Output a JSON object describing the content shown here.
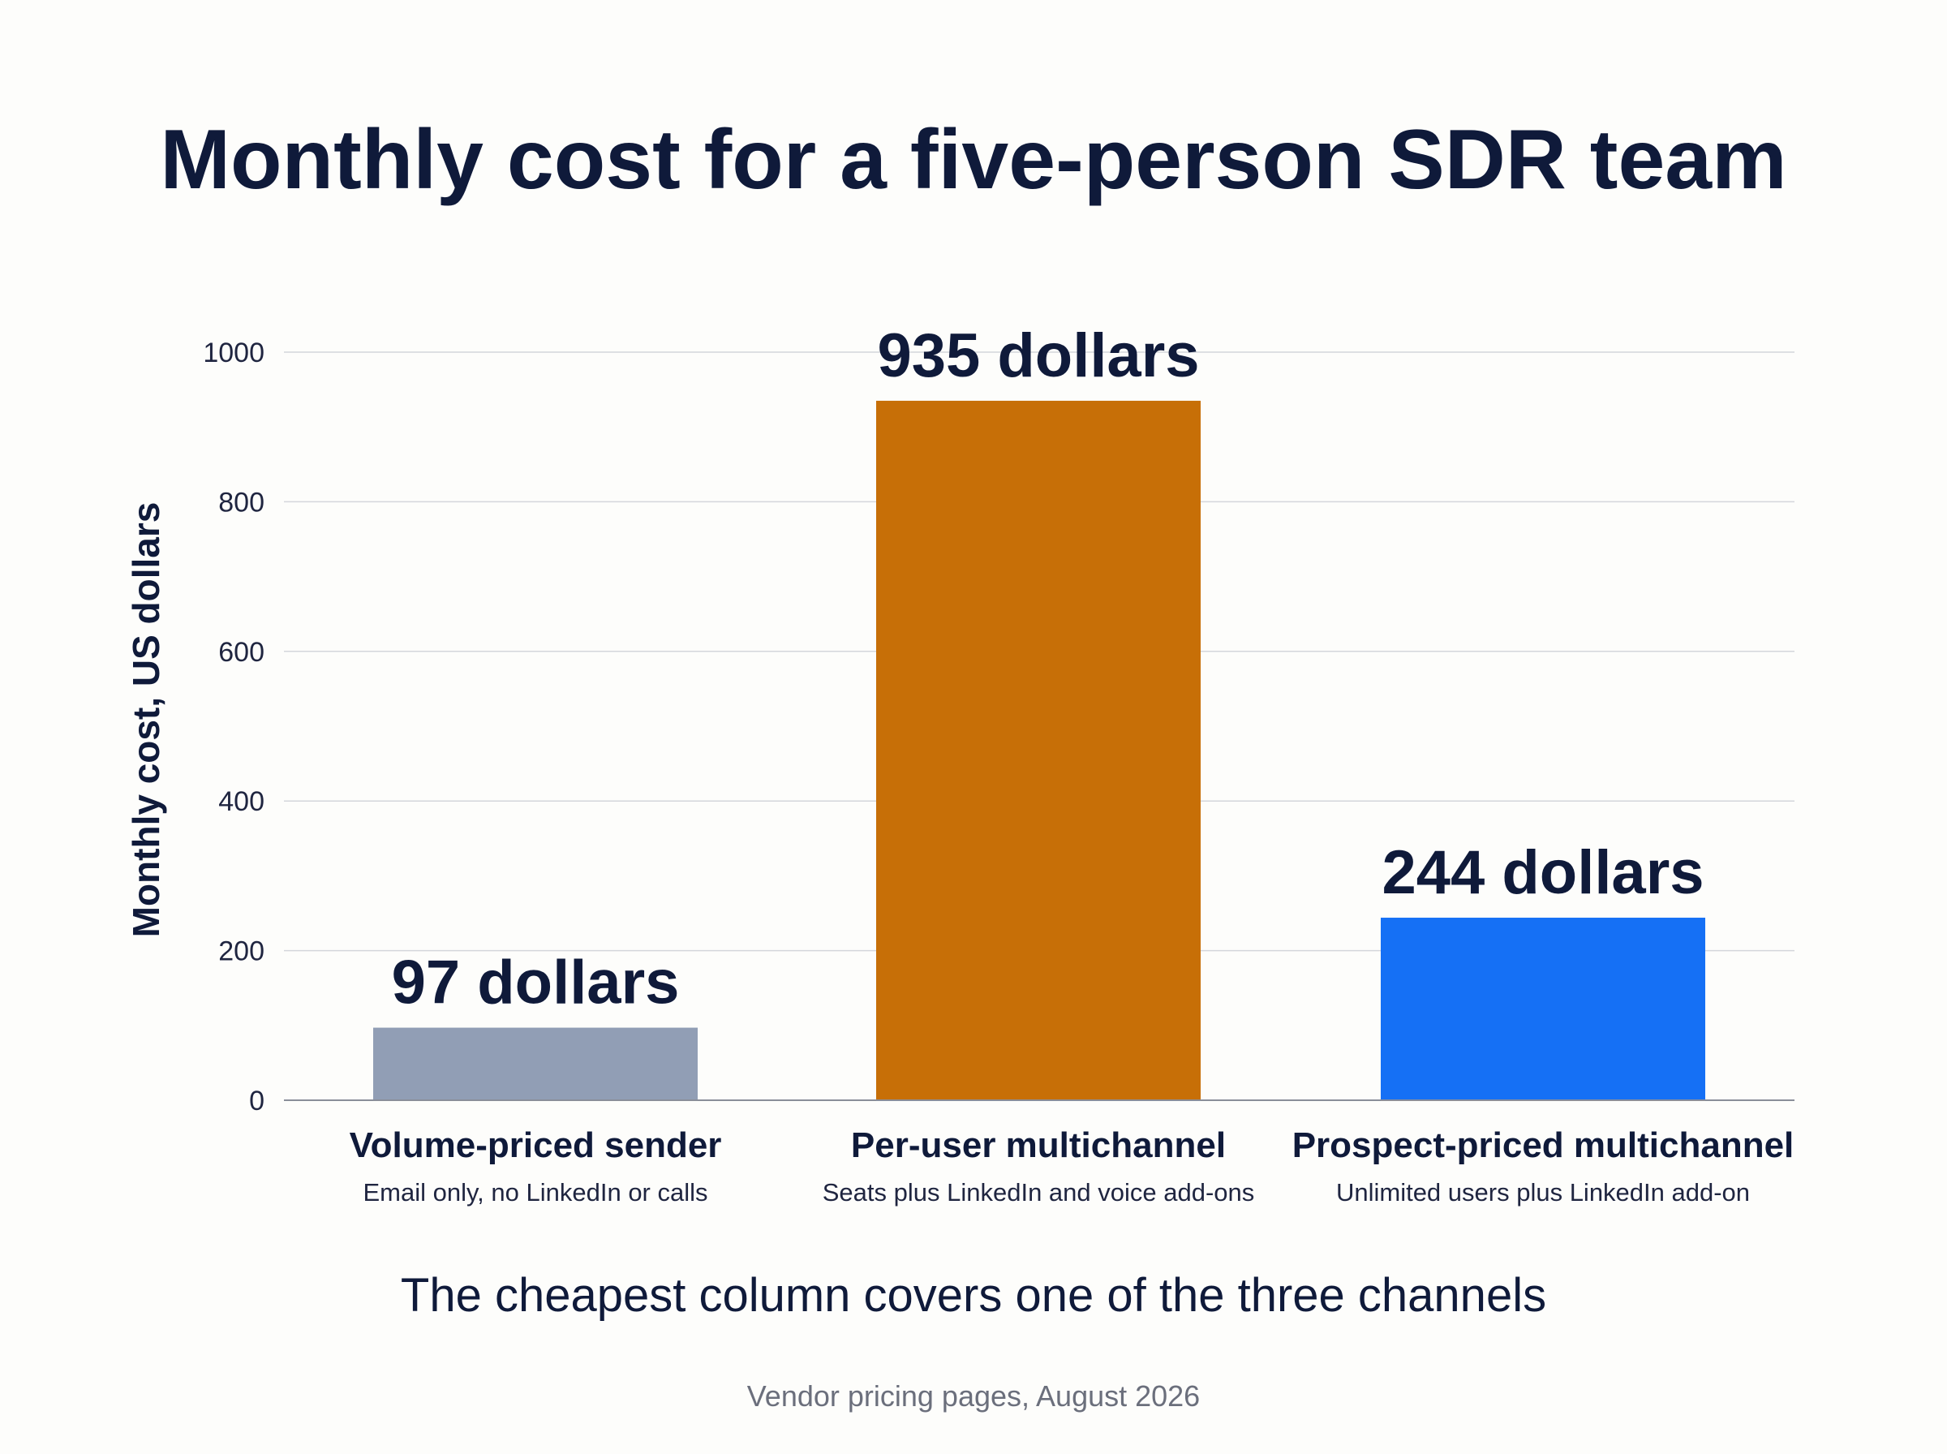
{
  "chart_data": {
    "type": "bar",
    "title": "Monthly cost for a five-person SDR team",
    "ylabel": "Monthly cost, US dollars",
    "xlabel": "",
    "ylim": [
      0,
      1000
    ],
    "yticks": [
      0,
      200,
      400,
      600,
      800,
      1000
    ],
    "grid": true,
    "categories": [
      "Volume-priced sender",
      "Per-user multichannel",
      "Prospect-priced multichannel"
    ],
    "category_notes": [
      "Email only, no LinkedIn or calls",
      "Seats plus LinkedIn and voice add-ons",
      "Unlimited users plus LinkedIn add-on"
    ],
    "values": [
      97,
      935,
      244
    ],
    "data_labels": [
      "97 dollars",
      "935 dollars",
      "244 dollars"
    ],
    "colors": [
      "#919eb5",
      "#c76f07",
      "#1570f5"
    ],
    "annotation": "The cheapest column covers one of the three channels",
    "source": "Vendor pricing pages, August 2026"
  }
}
